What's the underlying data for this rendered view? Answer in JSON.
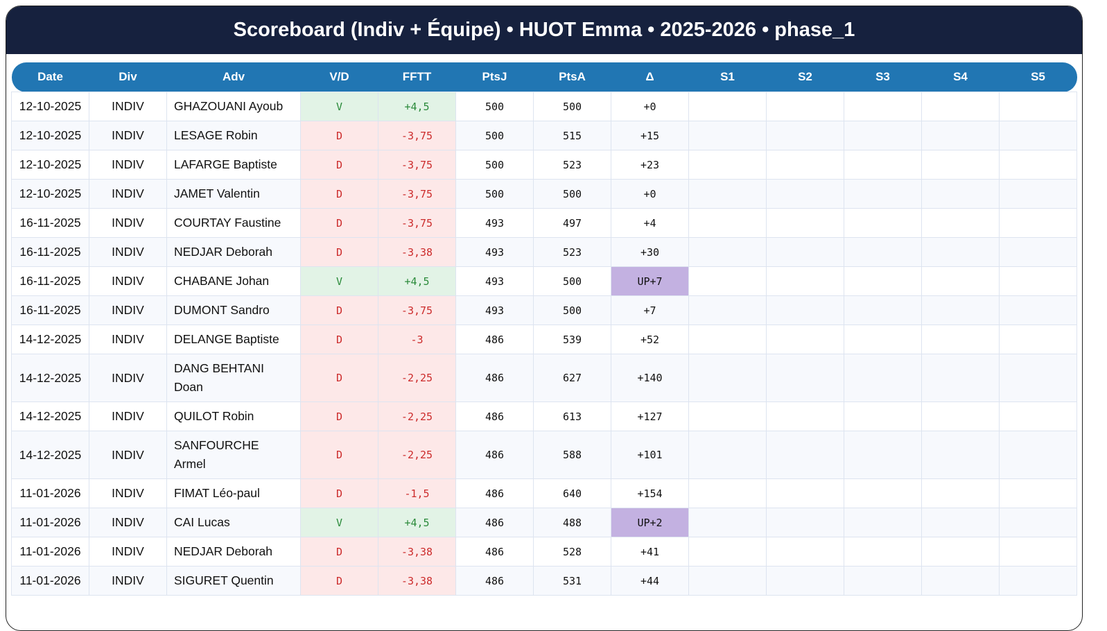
{
  "title": "Scoreboard (Indiv + Équipe) • HUOT Emma • 2025-2026 • phase_1",
  "columns": [
    "Date",
    "Div",
    "Adv",
    "V/D",
    "FFTT",
    "PtsJ",
    "PtsA",
    "Δ",
    "S1",
    "S2",
    "S3",
    "S4",
    "S5"
  ],
  "colors": {
    "header": "#16213e",
    "table_header": "#2176b3",
    "win_bg": "#e2f3e6",
    "win_text": "#2a8a3a",
    "loss_bg": "#fde8e8",
    "loss_text": "#cc2b2b",
    "up_bg": "#c3b1e1"
  },
  "rows": [
    {
      "date": "12-10-2025",
      "div": "INDIV",
      "adv": "GHAZOUANI Ayoub",
      "vd": "V",
      "fftt": "+4,5",
      "ptsj": "500",
      "ptsa": "500",
      "delta": "+0",
      "up": false
    },
    {
      "date": "12-10-2025",
      "div": "INDIV",
      "adv": "LESAGE Robin",
      "vd": "D",
      "fftt": "-3,75",
      "ptsj": "500",
      "ptsa": "515",
      "delta": "+15",
      "up": false
    },
    {
      "date": "12-10-2025",
      "div": "INDIV",
      "adv": "LAFARGE Baptiste",
      "vd": "D",
      "fftt": "-3,75",
      "ptsj": "500",
      "ptsa": "523",
      "delta": "+23",
      "up": false
    },
    {
      "date": "12-10-2025",
      "div": "INDIV",
      "adv": "JAMET Valentin",
      "vd": "D",
      "fftt": "-3,75",
      "ptsj": "500",
      "ptsa": "500",
      "delta": "+0",
      "up": false
    },
    {
      "date": "16-11-2025",
      "div": "INDIV",
      "adv": "COURTAY Faustine",
      "vd": "D",
      "fftt": "-3,75",
      "ptsj": "493",
      "ptsa": "497",
      "delta": "+4",
      "up": false
    },
    {
      "date": "16-11-2025",
      "div": "INDIV",
      "adv": "NEDJAR Deborah",
      "vd": "D",
      "fftt": "-3,38",
      "ptsj": "493",
      "ptsa": "523",
      "delta": "+30",
      "up": false
    },
    {
      "date": "16-11-2025",
      "div": "INDIV",
      "adv": "CHABANE Johan",
      "vd": "V",
      "fftt": "+4,5",
      "ptsj": "493",
      "ptsa": "500",
      "delta": "UP+7",
      "up": true
    },
    {
      "date": "16-11-2025",
      "div": "INDIV",
      "adv": "DUMONT Sandro",
      "vd": "D",
      "fftt": "-3,75",
      "ptsj": "493",
      "ptsa": "500",
      "delta": "+7",
      "up": false
    },
    {
      "date": "14-12-2025",
      "div": "INDIV",
      "adv": "DELANGE Baptiste",
      "vd": "D",
      "fftt": "-3",
      "ptsj": "486",
      "ptsa": "539",
      "delta": "+52",
      "up": false
    },
    {
      "date": "14-12-2025",
      "div": "INDIV",
      "adv": "DANG BEHTANI Doan",
      "vd": "D",
      "fftt": "-2,25",
      "ptsj": "486",
      "ptsa": "627",
      "delta": "+140",
      "up": false
    },
    {
      "date": "14-12-2025",
      "div": "INDIV",
      "adv": "QUILOT Robin",
      "vd": "D",
      "fftt": "-2,25",
      "ptsj": "486",
      "ptsa": "613",
      "delta": "+127",
      "up": false
    },
    {
      "date": "14-12-2025",
      "div": "INDIV",
      "adv": "SANFOURCHE Armel",
      "vd": "D",
      "fftt": "-2,25",
      "ptsj": "486",
      "ptsa": "588",
      "delta": "+101",
      "up": false
    },
    {
      "date": "11-01-2026",
      "div": "INDIV",
      "adv": "FIMAT Léo-paul",
      "vd": "D",
      "fftt": "-1,5",
      "ptsj": "486",
      "ptsa": "640",
      "delta": "+154",
      "up": false
    },
    {
      "date": "11-01-2026",
      "div": "INDIV",
      "adv": "CAI Lucas",
      "vd": "V",
      "fftt": "+4,5",
      "ptsj": "486",
      "ptsa": "488",
      "delta": "UP+2",
      "up": true
    },
    {
      "date": "11-01-2026",
      "div": "INDIV",
      "adv": "NEDJAR Deborah",
      "vd": "D",
      "fftt": "-3,38",
      "ptsj": "486",
      "ptsa": "528",
      "delta": "+41",
      "up": false
    },
    {
      "date": "11-01-2026",
      "div": "INDIV",
      "adv": "SIGURET Quentin",
      "vd": "D",
      "fftt": "-3,38",
      "ptsj": "486",
      "ptsa": "531",
      "delta": "+44",
      "up": false
    }
  ]
}
